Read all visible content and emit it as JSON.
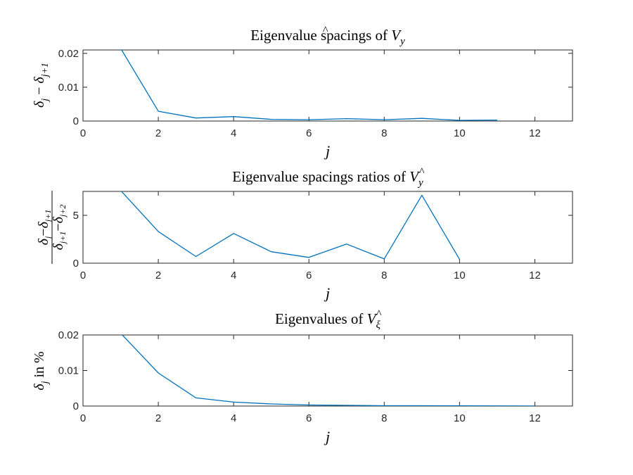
{
  "chart_data": [
    {
      "type": "line",
      "title": "Eigenvalue spacings of V̂y",
      "title_parts": {
        "text": "Eigenvalue spacings of ",
        "math": "V",
        "sub": "y"
      },
      "xlabel": "j",
      "ylabel_parts": {
        "a": "δ",
        "a_sub": "j",
        "op": " − ",
        "b": "δ",
        "b_sub": "j+1"
      },
      "xlim": [
        0,
        13
      ],
      "ylim": [
        0,
        0.021
      ],
      "xticks": [
        0,
        2,
        4,
        6,
        8,
        10,
        12
      ],
      "yticks": [
        0,
        0.01,
        0.02
      ],
      "ytick_labels": [
        "0",
        "0.01",
        "0.02"
      ],
      "x": [
        1,
        2,
        3,
        4,
        5,
        6,
        7,
        8,
        9,
        10,
        11
      ],
      "y": [
        0.0215,
        0.0029,
        0.0009,
        0.0013,
        0.0005,
        0.0004,
        0.0007,
        0.0004,
        0.0008,
        0.0002,
        0.0003
      ],
      "color": "#0072BD"
    },
    {
      "type": "line",
      "title": "Eigenvalue spacings ratios of V̂y",
      "title_parts": {
        "text": "Eigenvalue spacings ratios of ",
        "math": "V",
        "sub": "y"
      },
      "xlabel": "j",
      "ylabel_parts": {
        "num_a": "δ",
        "num_a_sub": "j",
        "num_op": "−",
        "num_b": "δ",
        "num_b_sub": "j+1",
        "den_a": "δ",
        "den_a_sub": "j+1",
        "den_op": "−",
        "den_b": "δ",
        "den_b_sub": "j+2"
      },
      "xlim": [
        0,
        13
      ],
      "ylim": [
        0,
        7.5
      ],
      "xticks": [
        0,
        2,
        4,
        6,
        8,
        10,
        12
      ],
      "yticks": [
        0,
        5
      ],
      "ytick_labels": [
        "0",
        "5"
      ],
      "x": [
        1,
        2,
        3,
        4,
        5,
        6,
        7,
        8,
        9,
        10
      ],
      "y": [
        7.6,
        3.3,
        0.7,
        3.1,
        1.2,
        0.6,
        2.0,
        0.45,
        7.1,
        0.4
      ],
      "color": "#0072BD"
    },
    {
      "type": "line",
      "title": "Eigenvalues of V̂ξ",
      "title_parts": {
        "text": "Eigenvalues of ",
        "math": "V",
        "sub": "ξ"
      },
      "xlabel": "j",
      "ylabel_parts": {
        "a": "δ",
        "a_sub": "j",
        "rest": " in %"
      },
      "xlim": [
        0,
        13
      ],
      "ylim": [
        0,
        0.02
      ],
      "xticks": [
        0,
        2,
        4,
        6,
        8,
        10,
        12
      ],
      "yticks": [
        0,
        0.01,
        0.02
      ],
      "ytick_labels": [
        "0",
        "0.01",
        "0.02"
      ],
      "x": [
        1,
        2,
        3,
        4,
        5,
        6,
        7,
        8,
        9,
        10,
        11,
        12
      ],
      "y": [
        0.0205,
        0.0093,
        0.0023,
        0.0011,
        0.0006,
        0.0003,
        0.0002,
        0.0001,
        0.0001,
        5e-05,
        3e-05,
        2e-05
      ],
      "color": "#0072BD"
    }
  ]
}
